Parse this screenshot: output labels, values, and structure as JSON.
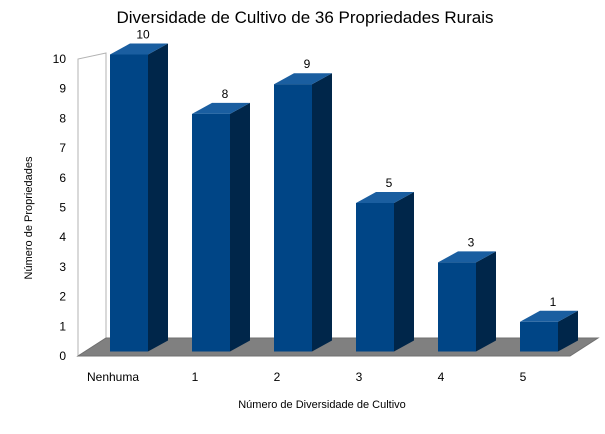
{
  "chart_data": {
    "type": "bar",
    "title": "Diversidade de Cultivo de 36 Propriedades Rurais",
    "xlabel": "Número de Diversidade de Cultivo",
    "ylabel": "Número de Propriedades",
    "categories": [
      "Nenhuma",
      "1",
      "2",
      "3",
      "4",
      "5"
    ],
    "values": [
      10,
      8,
      9,
      5,
      3,
      1
    ],
    "ylim": [
      0,
      10
    ],
    "yticks": [
      0,
      1,
      2,
      3,
      4,
      5,
      6,
      7,
      8,
      9,
      10
    ],
    "data_labels": [
      "10",
      "8",
      "9",
      "5",
      "3",
      "1"
    ],
    "three_d": true,
    "legend": "none",
    "colors": {
      "bar_front": "#004586",
      "bar_side": "#00264a",
      "bar_top": "#1a5ea0",
      "floor": "#808080",
      "back_wall": "#ffffff",
      "wall_edge": "#b3b3b3"
    }
  }
}
